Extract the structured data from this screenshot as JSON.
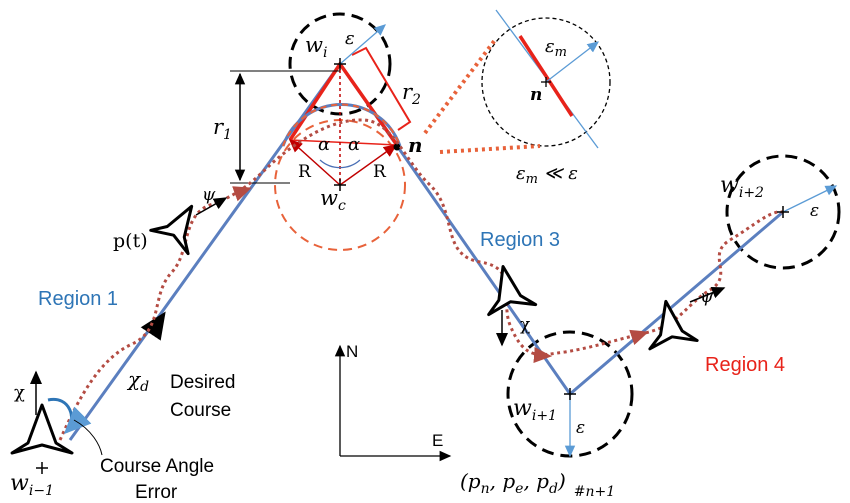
{
  "labels": {
    "w_i": "w",
    "w_i_sub": "i",
    "epsilon_top": "ε",
    "w_c": "w",
    "w_c_sub": "c",
    "r1": "r",
    "r1_sub": "1",
    "r2": "r",
    "r2_sub": "2",
    "R_left": "R",
    "R_right": "R",
    "alpha_left": "α",
    "alpha_right": "α",
    "n_bold": "n",
    "eps_m": "ε",
    "eps_m_sub": "m",
    "n_inset": "n",
    "eps_relation": "ε",
    "eps_relation_sub": "m",
    "eps_relation_rest": " ≪ ε",
    "psi_left": "ψ",
    "p_t": "p(t)",
    "region1": "Region 1",
    "region3": "Region 3",
    "region4": "Region 4",
    "chi_left": "χ",
    "chi_d": "χ",
    "chi_d_sub": "d",
    "desired": "Desired",
    "course": "Course",
    "course_angle": "Course Angle",
    "error": "Error",
    "w_im1": "w",
    "w_im1_sub": "i−1",
    "axis_n": "N",
    "axis_e": "E",
    "chi_mid": "χ",
    "w_ip1": "w",
    "w_ip1_sub": "i+1",
    "eps_ip1": "ε",
    "coord": "(p",
    "coord_n": "n",
    "coord_mid": ", p",
    "coord_e": "e",
    "coord_mid2": ", p",
    "coord_d": "d",
    "coord_close": ")",
    "coord_sub": "#n+1",
    "psi_right": "ψ",
    "w_ip2": "w",
    "w_ip2_sub": "i+2",
    "eps_ip2": "ε"
  },
  "colors": {
    "path_blue": "#5b7fbf",
    "red": "#e8231a",
    "dotted_red": "#b44c43",
    "orange_dash": "#e8623a",
    "region_blue": "#2e75b6"
  }
}
